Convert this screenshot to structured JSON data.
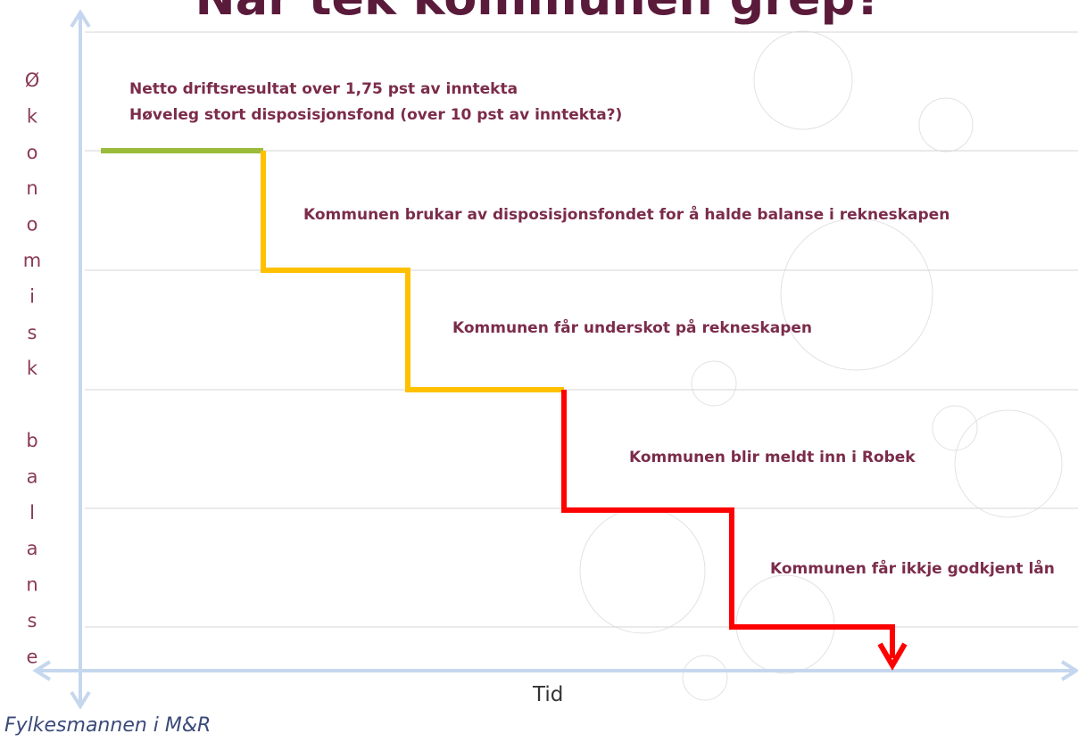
{
  "title": "Når tek kommunen grep?",
  "y_axis_label": "Økonomisk balanse",
  "x_axis_label": "Tid",
  "stages": [
    "Netto driftsresultat over 1,75 pst av inntekta",
    "Høveleg stort disposisjonsfond (over 10 pst av inntekta?)",
    "Kommunen brukar av disposisjonsfondet for å halde balanse i rekneskapen",
    "Kommunen får underskot på rekneskapen",
    "Kommunen blir meldt inn i Robek",
    "Kommunen får ikkje godkjent lån"
  ],
  "footer": "Fylkesmannen i M&R"
}
